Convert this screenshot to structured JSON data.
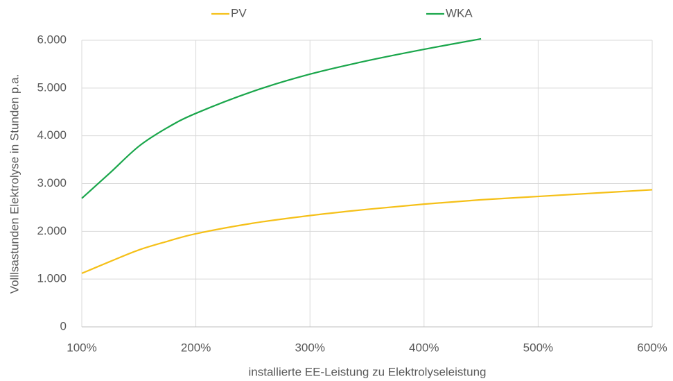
{
  "chart_data": {
    "type": "line",
    "xlabel": "installierte EE-Leistung  zu Elektrolyseleistung",
    "ylabel": "Volllsastunden Elektrolyse in Stunden p.a.",
    "x": [
      100,
      125,
      150,
      175,
      200,
      250,
      300,
      350,
      400,
      450,
      500,
      550,
      600
    ],
    "series": [
      {
        "name": "PV",
        "color": "#f5c018",
        "values": [
          1120,
          1370,
          1610,
          1790,
          1950,
          2170,
          2330,
          2460,
          2570,
          2660,
          2730,
          2800,
          2870
        ]
      },
      {
        "name": "WKA",
        "color": "#1aa64b",
        "values": [
          2690,
          3230,
          3780,
          4170,
          4470,
          4930,
          5290,
          5570,
          5810,
          6030,
          null,
          null,
          null
        ]
      }
    ],
    "xlim": [
      100,
      600
    ],
    "xticks": [
      {
        "value": 100,
        "label": "100%"
      },
      {
        "value": 200,
        "label": "200%"
      },
      {
        "value": 300,
        "label": "300%"
      },
      {
        "value": 400,
        "label": "400%"
      },
      {
        "value": 500,
        "label": "500%"
      },
      {
        "value": 600,
        "label": "600%"
      }
    ],
    "ylim": [
      0,
      6000
    ],
    "yticks": [
      0,
      {
        "value": 1000,
        "label": "1.000"
      },
      {
        "value": 2000,
        "label": "2.000"
      },
      {
        "value": 3000,
        "label": "3.000"
      },
      {
        "value": 4000,
        "label": "4.000"
      },
      {
        "value": 5000,
        "label": "5.000"
      },
      {
        "value": 6000,
        "label": "6.000"
      }
    ],
    "grid": true,
    "legend": "top"
  }
}
